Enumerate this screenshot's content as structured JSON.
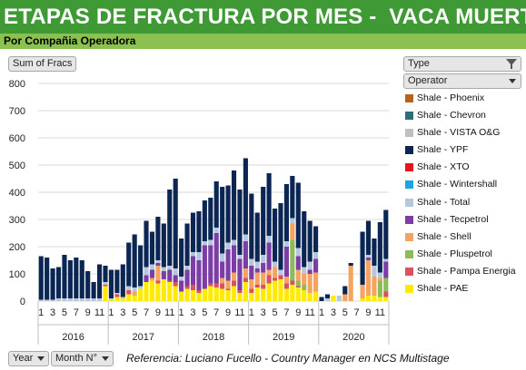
{
  "header": {
    "title": "ETAPAS DE FRACTURA POR MES -  VACA MUERTA",
    "subtitle": "Por Compañia Operadora"
  },
  "controls": {
    "values_button": "Sum of Fracs",
    "type_filter": "Type",
    "operator_filter": "Operator",
    "year_field": "Year",
    "month_field": "Month N°"
  },
  "reference": "Referencia: Luciano Fucello - Country Manager en NCS Multistage",
  "colors": {
    "title_bg": "#3f9a35",
    "subtitle_bg": "#8cc152"
  },
  "chart_data": {
    "type": "bar",
    "stacked": true,
    "ylim": [
      0,
      800
    ],
    "yticks": [
      0,
      100,
      200,
      300,
      400,
      500,
      600,
      700,
      800
    ],
    "grid": true,
    "legend_position": "right",
    "years": [
      "2016",
      "2017",
      "2018",
      "2019",
      "2020"
    ],
    "month_tick_labels": [
      "1",
      "3",
      "5",
      "7",
      "9",
      "11"
    ],
    "series": [
      {
        "name": "Shale - PAE",
        "color": "#ffea00",
        "values": [
          0,
          0,
          0,
          0,
          0,
          0,
          0,
          0,
          0,
          0,
          0,
          55,
          5,
          15,
          10,
          25,
          20,
          45,
          70,
          75,
          65,
          80,
          70,
          55,
          35,
          45,
          40,
          30,
          45,
          55,
          50,
          45,
          40,
          55,
          30,
          70,
          30,
          50,
          45,
          65,
          75,
          80,
          45,
          60,
          50,
          40,
          30,
          35,
          0,
          0,
          20,
          0,
          0,
          0,
          0,
          10,
          20,
          20,
          15,
          15
        ]
      },
      {
        "name": "Shale - Pampa Energia",
        "color": "#d9535f",
        "values": [
          0,
          0,
          0,
          0,
          0,
          0,
          0,
          0,
          0,
          0,
          0,
          5,
          0,
          10,
          0,
          15,
          0,
          0,
          0,
          0,
          10,
          0,
          5,
          15,
          0,
          10,
          20,
          10,
          0,
          10,
          15,
          20,
          5,
          20,
          10,
          15,
          15,
          10,
          15,
          30,
          10,
          15,
          20,
          15,
          5,
          0,
          0,
          0,
          0,
          0,
          0,
          0,
          0,
          0,
          0,
          0,
          0,
          0,
          0,
          20
        ]
      },
      {
        "name": "Shale - Pluspetrol",
        "color": "#8dbb5a",
        "values": [
          0,
          0,
          0,
          0,
          0,
          0,
          0,
          0,
          0,
          0,
          0,
          0,
          0,
          0,
          0,
          0,
          0,
          0,
          0,
          0,
          0,
          0,
          0,
          0,
          0,
          0,
          0,
          0,
          0,
          0,
          0,
          0,
          0,
          0,
          0,
          0,
          0,
          0,
          0,
          0,
          0,
          0,
          0,
          150,
          20,
          20,
          0,
          0,
          0,
          0,
          0,
          0,
          0,
          0,
          0,
          0,
          0,
          0,
          60,
          50
        ]
      },
      {
        "name": "Shale - Shell",
        "color": "#f4a460",
        "values": [
          0,
          0,
          0,
          0,
          0,
          0,
          0,
          0,
          0,
          0,
          0,
          0,
          0,
          0,
          0,
          0,
          15,
          0,
          0,
          10,
          55,
          0,
          0,
          0,
          0,
          0,
          0,
          0,
          0,
          0,
          0,
          20,
          30,
          30,
          0,
          35,
          35,
          45,
          45,
          20,
          40,
          0,
          25,
          60,
          40,
          40,
          70,
          70,
          0,
          0,
          0,
          0,
          25,
          130,
          0,
          50,
          130,
          70,
          10,
          0
        ]
      },
      {
        "name": "Shale - Tecpetrol",
        "color": "#7a3ea6",
        "values": [
          0,
          0,
          0,
          0,
          0,
          0,
          0,
          0,
          0,
          0,
          0,
          0,
          0,
          0,
          0,
          0,
          0,
          0,
          25,
          30,
          10,
          30,
          40,
          25,
          40,
          60,
          105,
          110,
          160,
          140,
          185,
          60,
          115,
          100,
          115,
          100,
          50,
          15,
          35,
          100,
          0,
          0,
          110,
          0,
          50,
          0,
          15,
          50,
          0,
          0,
          0,
          0,
          0,
          0,
          0,
          0,
          10,
          0,
          0,
          60
        ]
      },
      {
        "name": "Shale - Total",
        "color": "#b4c7dc",
        "values": [
          5,
          5,
          5,
          10,
          10,
          10,
          10,
          10,
          10,
          10,
          10,
          10,
          5,
          5,
          5,
          15,
          15,
          10,
          30,
          20,
          10,
          15,
          15,
          25,
          15,
          15,
          15,
          30,
          15,
          20,
          20,
          30,
          25,
          20,
          15,
          25,
          25,
          25,
          30,
          25,
          20,
          20,
          20,
          20,
          30,
          25,
          30,
          25,
          0,
          10,
          0,
          20,
          0,
          0,
          0,
          0,
          10,
          40,
          20,
          10
        ]
      },
      {
        "name": "Shale - Wintershall",
        "color": "#1aa7e0",
        "values": [
          0,
          0,
          0,
          0,
          0,
          0,
          0,
          0,
          0,
          0,
          0,
          0,
          0,
          0,
          0,
          0,
          0,
          0,
          0,
          0,
          0,
          0,
          0,
          0,
          0,
          0,
          0,
          0,
          0,
          0,
          0,
          0,
          0,
          0,
          0,
          0,
          0,
          0,
          0,
          0,
          0,
          0,
          0,
          0,
          0,
          0,
          0,
          0,
          0,
          0,
          0,
          0,
          0,
          0,
          0,
          0,
          0,
          0,
          0,
          0
        ]
      },
      {
        "name": "Shale - XTO",
        "color": "#e8141a",
        "values": [
          0,
          0,
          0,
          0,
          0,
          0,
          0,
          0,
          0,
          0,
          0,
          0,
          0,
          0,
          0,
          0,
          0,
          0,
          0,
          0,
          0,
          0,
          0,
          0,
          0,
          0,
          0,
          0,
          0,
          0,
          0,
          0,
          0,
          0,
          0,
          0,
          0,
          0,
          0,
          0,
          0,
          0,
          0,
          0,
          0,
          0,
          0,
          0,
          0,
          0,
          0,
          0,
          0,
          0,
          0,
          0,
          0,
          0,
          0,
          0
        ]
      },
      {
        "name": "Shale - YPF",
        "color": "#0c2654",
        "values": [
          160,
          155,
          115,
          115,
          160,
          140,
          150,
          140,
          100,
          60,
          125,
          60,
          105,
          85,
          120,
          160,
          195,
          150,
          170,
          120,
          160,
          160,
          280,
          330,
          140,
          155,
          145,
          150,
          150,
          155,
          170,
          245,
          210,
          255,
          240,
          280,
          240,
          180,
          250,
          230,
          195,
          245,
          210,
          155,
          240,
          205,
          150,
          95,
          15,
          15,
          0,
          0,
          30,
          10,
          0,
          195,
          125,
          100,
          185,
          180
        ]
      },
      {
        "name": "Shale - VISTA O&G",
        "color": "#bfbfbf",
        "values": [
          0,
          0,
          0,
          0,
          0,
          0,
          0,
          0,
          0,
          0,
          0,
          0,
          0,
          0,
          0,
          0,
          0,
          0,
          0,
          0,
          0,
          0,
          0,
          0,
          0,
          0,
          0,
          0,
          0,
          0,
          0,
          0,
          0,
          0,
          0,
          0,
          0,
          0,
          0,
          0,
          0,
          0,
          0,
          0,
          0,
          0,
          0,
          0,
          0,
          0,
          0,
          0,
          0,
          0,
          0,
          0,
          0,
          0,
          0,
          0
        ]
      },
      {
        "name": "Shale - Chevron",
        "color": "#2e6e7a",
        "values": [
          0,
          0,
          0,
          0,
          0,
          0,
          0,
          0,
          0,
          0,
          0,
          0,
          0,
          0,
          0,
          0,
          0,
          0,
          0,
          0,
          0,
          0,
          0,
          0,
          0,
          0,
          0,
          0,
          0,
          0,
          0,
          0,
          0,
          0,
          0,
          0,
          0,
          0,
          0,
          0,
          0,
          0,
          0,
          0,
          0,
          0,
          0,
          0,
          0,
          0,
          0,
          0,
          0,
          0,
          0,
          0,
          0,
          0,
          0,
          0
        ]
      },
      {
        "name": "Shale - Phoenix",
        "color": "#b8611a",
        "values": [
          0,
          0,
          0,
          0,
          0,
          0,
          0,
          0,
          0,
          0,
          0,
          0,
          0,
          0,
          0,
          0,
          0,
          0,
          0,
          0,
          0,
          0,
          0,
          0,
          0,
          0,
          0,
          0,
          0,
          0,
          0,
          0,
          0,
          0,
          0,
          0,
          0,
          0,
          0,
          0,
          0,
          0,
          0,
          0,
          0,
          0,
          0,
          0,
          0,
          0,
          0,
          0,
          0,
          0,
          0,
          0,
          0,
          0,
          0,
          0
        ]
      }
    ],
    "legend": [
      "Shale - Phoenix",
      "Shale - Chevron",
      "Shale - VISTA O&G",
      "Shale - YPF",
      "Shale - XTO",
      "Shale - Wintershall",
      "Shale - Total",
      "Shale - Tecpetrol",
      "Shale - Shell",
      "Shale - Pluspetrol",
      "Shale - Pampa Energia",
      "Shale - PAE"
    ]
  }
}
